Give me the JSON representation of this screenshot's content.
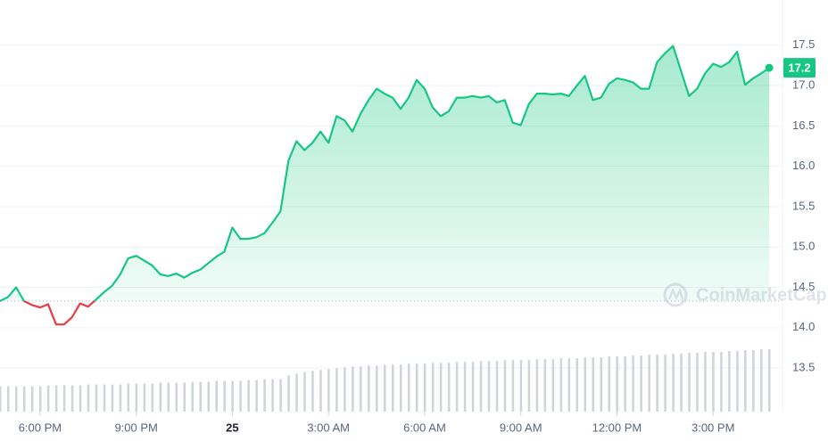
{
  "chart_data": {
    "type": "line",
    "x": [
      16.75,
      17,
      17.25,
      17.5,
      17.75,
      18,
      18.25,
      18.5,
      18.75,
      19,
      19.25,
      19.5,
      19.75,
      20,
      20.25,
      20.5,
      20.75,
      21,
      21.25,
      21.5,
      21.75,
      22,
      22.25,
      22.5,
      22.75,
      23,
      23.25,
      23.5,
      23.75,
      24,
      24.25,
      24.5,
      24.75,
      25,
      25.25,
      25.5,
      25.75,
      26,
      26.25,
      26.5,
      26.75,
      27,
      27.25,
      27.5,
      27.75,
      28,
      28.25,
      28.5,
      28.75,
      29,
      29.25,
      29.5,
      29.75,
      30,
      30.25,
      30.5,
      30.75,
      31,
      31.25,
      31.5,
      31.75,
      32,
      32.25,
      32.5,
      32.75,
      33,
      33.25,
      33.5,
      33.75,
      34,
      34.25,
      34.5,
      34.75,
      35,
      35.25,
      35.5,
      35.75,
      36,
      36.25,
      36.5,
      36.75,
      37,
      37.25,
      37.5,
      37.75,
      38,
      38.25,
      38.5,
      38.75,
      39,
      39.25,
      39.5,
      39.75,
      40,
      40.25,
      40.5,
      40.75
    ],
    "values": [
      14.33,
      14.38,
      14.5,
      14.33,
      14.28,
      14.25,
      14.29,
      14.04,
      14.04,
      14.13,
      14.3,
      14.26,
      14.35,
      14.44,
      14.52,
      14.66,
      14.86,
      14.89,
      14.83,
      14.77,
      14.66,
      14.64,
      14.67,
      14.62,
      14.68,
      14.72,
      14.8,
      14.88,
      14.94,
      15.24,
      15.1,
      15.1,
      15.12,
      15.17,
      15.3,
      15.44,
      16.07,
      16.31,
      16.2,
      16.29,
      16.43,
      16.29,
      16.62,
      16.57,
      16.43,
      16.65,
      16.82,
      16.96,
      16.9,
      16.85,
      16.71,
      16.85,
      17.07,
      16.96,
      16.73,
      16.62,
      16.68,
      16.85,
      16.85,
      16.87,
      16.85,
      16.87,
      16.79,
      16.82,
      16.54,
      16.51,
      16.77,
      16.9,
      16.9,
      16.89,
      16.9,
      16.87,
      17.0,
      17.12,
      16.82,
      16.85,
      17.02,
      17.09,
      17.07,
      17.04,
      16.96,
      16.96,
      17.29,
      17.4,
      17.49,
      17.18,
      16.87,
      16.96,
      17.15,
      17.27,
      17.23,
      17.29,
      17.42,
      17.01,
      17.09,
      17.15,
      17.22
    ],
    "volume": [
      28,
      28,
      28,
      28,
      28,
      28,
      29,
      29,
      29,
      29,
      29,
      30,
      30,
      30,
      30,
      30,
      31,
      31,
      31,
      31,
      32,
      32,
      32,
      32,
      33,
      33,
      33,
      34,
      34,
      34,
      34,
      35,
      35,
      36,
      36,
      36,
      40,
      42,
      44,
      45,
      46,
      47,
      48,
      49,
      50,
      50,
      51,
      51,
      52,
      52,
      52,
      53,
      53,
      53,
      54,
      54,
      54,
      55,
      55,
      55,
      56,
      56,
      56,
      57,
      57,
      57,
      57,
      58,
      58,
      58,
      59,
      59,
      59,
      60,
      60,
      60,
      61,
      61,
      61,
      62,
      62,
      63,
      63,
      63,
      64,
      64,
      65,
      65,
      66,
      66,
      66,
      67,
      67,
      68,
      68,
      69,
      69
    ],
    "color": "#16c784",
    "down_color": "#ea3943",
    "volume_color": "#cfd3da",
    "current_price_label": "17.2",
    "watermark": "CoinMarketCap",
    "xlim": [
      16.75,
      41.11
    ],
    "ylim": [
      12.96,
      18.06
    ],
    "xticks": [
      {
        "value": 18,
        "label": "6:00 PM"
      },
      {
        "value": 21,
        "label": "9:00 PM"
      },
      {
        "value": 24,
        "label": "25"
      },
      {
        "value": 27,
        "label": "3:00 AM"
      },
      {
        "value": 30,
        "label": "6:00 AM"
      },
      {
        "value": 33,
        "label": "9:00 AM"
      },
      {
        "value": 36,
        "label": "12:00 PM"
      },
      {
        "value": 39,
        "label": "3:00 PM"
      }
    ],
    "yticks": [
      13.5,
      {
        "value": 14,
        "label": "14.0"
      },
      14.5,
      {
        "value": 15,
        "label": "15.0"
      },
      15.5,
      {
        "value": 16,
        "label": "16.0"
      },
      16.5,
      {
        "value": 17,
        "label": "17.0"
      },
      17.5
    ],
    "grid": true
  }
}
